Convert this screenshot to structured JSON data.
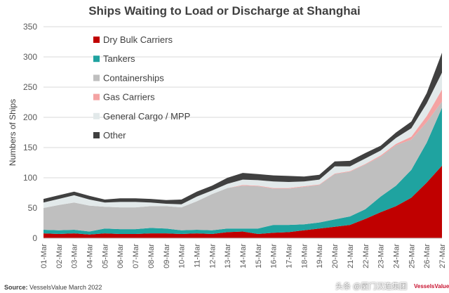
{
  "header": {
    "title": "Ships Waiting to Load or Discharge at Shanghai"
  },
  "footer": {
    "source_label": "Source:",
    "source_text": "VesselsValue March 2022",
    "watermark": "头条 @厦门汉连集团",
    "brand": "VesselsValue"
  },
  "chart_data": {
    "type": "area",
    "stacked": true,
    "title": "Ships Waiting to Load or Discharge at Shanghai",
    "xlabel": "",
    "ylabel": "Numbers of Ships",
    "ylim": [
      0,
      350
    ],
    "yticks": [
      0,
      50,
      100,
      150,
      200,
      250,
      300,
      350
    ],
    "grid": true,
    "legend_position": "top-left",
    "x_tick_labels": [
      "01-Mar",
      "02-Mar",
      "03-Mar",
      "04-Mar",
      "05-Mar",
      "06-Mar",
      "07-Mar",
      "08-Mar",
      "09-Mar",
      "10-Mar",
      "11-Mar",
      "12-Mar",
      "13-Mar",
      "14-Mar",
      "15-Mar",
      "16-Mar",
      "17-Mar",
      "18-Mar",
      "19-Mar",
      "20-Mar",
      "21-Mar",
      "22-Mar",
      "23-Mar",
      "24-Mar",
      "25-Mar",
      "26-Mar",
      "27-Mar"
    ],
    "series": [
      {
        "name": "Dry Bulk Carriers",
        "color": "#c00000",
        "values": [
          8,
          7,
          8,
          6,
          8,
          7,
          7,
          8,
          8,
          7,
          8,
          7,
          10,
          11,
          7,
          9,
          10,
          13,
          16,
          19,
          22,
          32,
          43,
          53,
          67,
          92,
          120
        ]
      },
      {
        "name": "Tankers",
        "color": "#1fa3a0",
        "values": [
          6,
          6,
          6,
          5,
          8,
          8,
          8,
          9,
          8,
          6,
          6,
          6,
          6,
          5,
          9,
          13,
          12,
          10,
          10,
          12,
          14,
          16,
          26,
          34,
          46,
          66,
          96
        ]
      },
      {
        "name": "Containerships",
        "color": "#bfbfbf",
        "values": [
          36,
          42,
          45,
          43,
          36,
          36,
          36,
          36,
          37,
          38,
          47,
          60,
          67,
          71,
          70,
          60,
          60,
          62,
          62,
          75,
          74,
          74,
          66,
          67,
          50,
          34,
          10
        ]
      },
      {
        "name": "Gas Carriers",
        "color": "#f4a3a3",
        "values": [
          0,
          0,
          0,
          0,
          0,
          0,
          0,
          0,
          0,
          0,
          0,
          0,
          0,
          1,
          1,
          1,
          1,
          1,
          1,
          1,
          1,
          1,
          2,
          2,
          5,
          10,
          20
        ]
      },
      {
        "name": "General Cargo / MPP",
        "color": "#e2e9ea",
        "values": [
          9,
          10,
          12,
          10,
          7,
          9,
          9,
          6,
          4,
          5,
          8,
          6,
          7,
          9,
          9,
          11,
          10,
          8,
          8,
          12,
          8,
          9,
          8,
          10,
          14,
          21,
          28
        ]
      },
      {
        "name": "Other",
        "color": "#404040",
        "values": [
          6,
          6,
          6,
          6,
          5,
          6,
          6,
          6,
          6,
          8,
          8,
          8,
          10,
          11,
          10,
          10,
          10,
          8,
          8,
          8,
          9,
          9,
          8,
          9,
          11,
          17,
          33
        ]
      }
    ]
  }
}
